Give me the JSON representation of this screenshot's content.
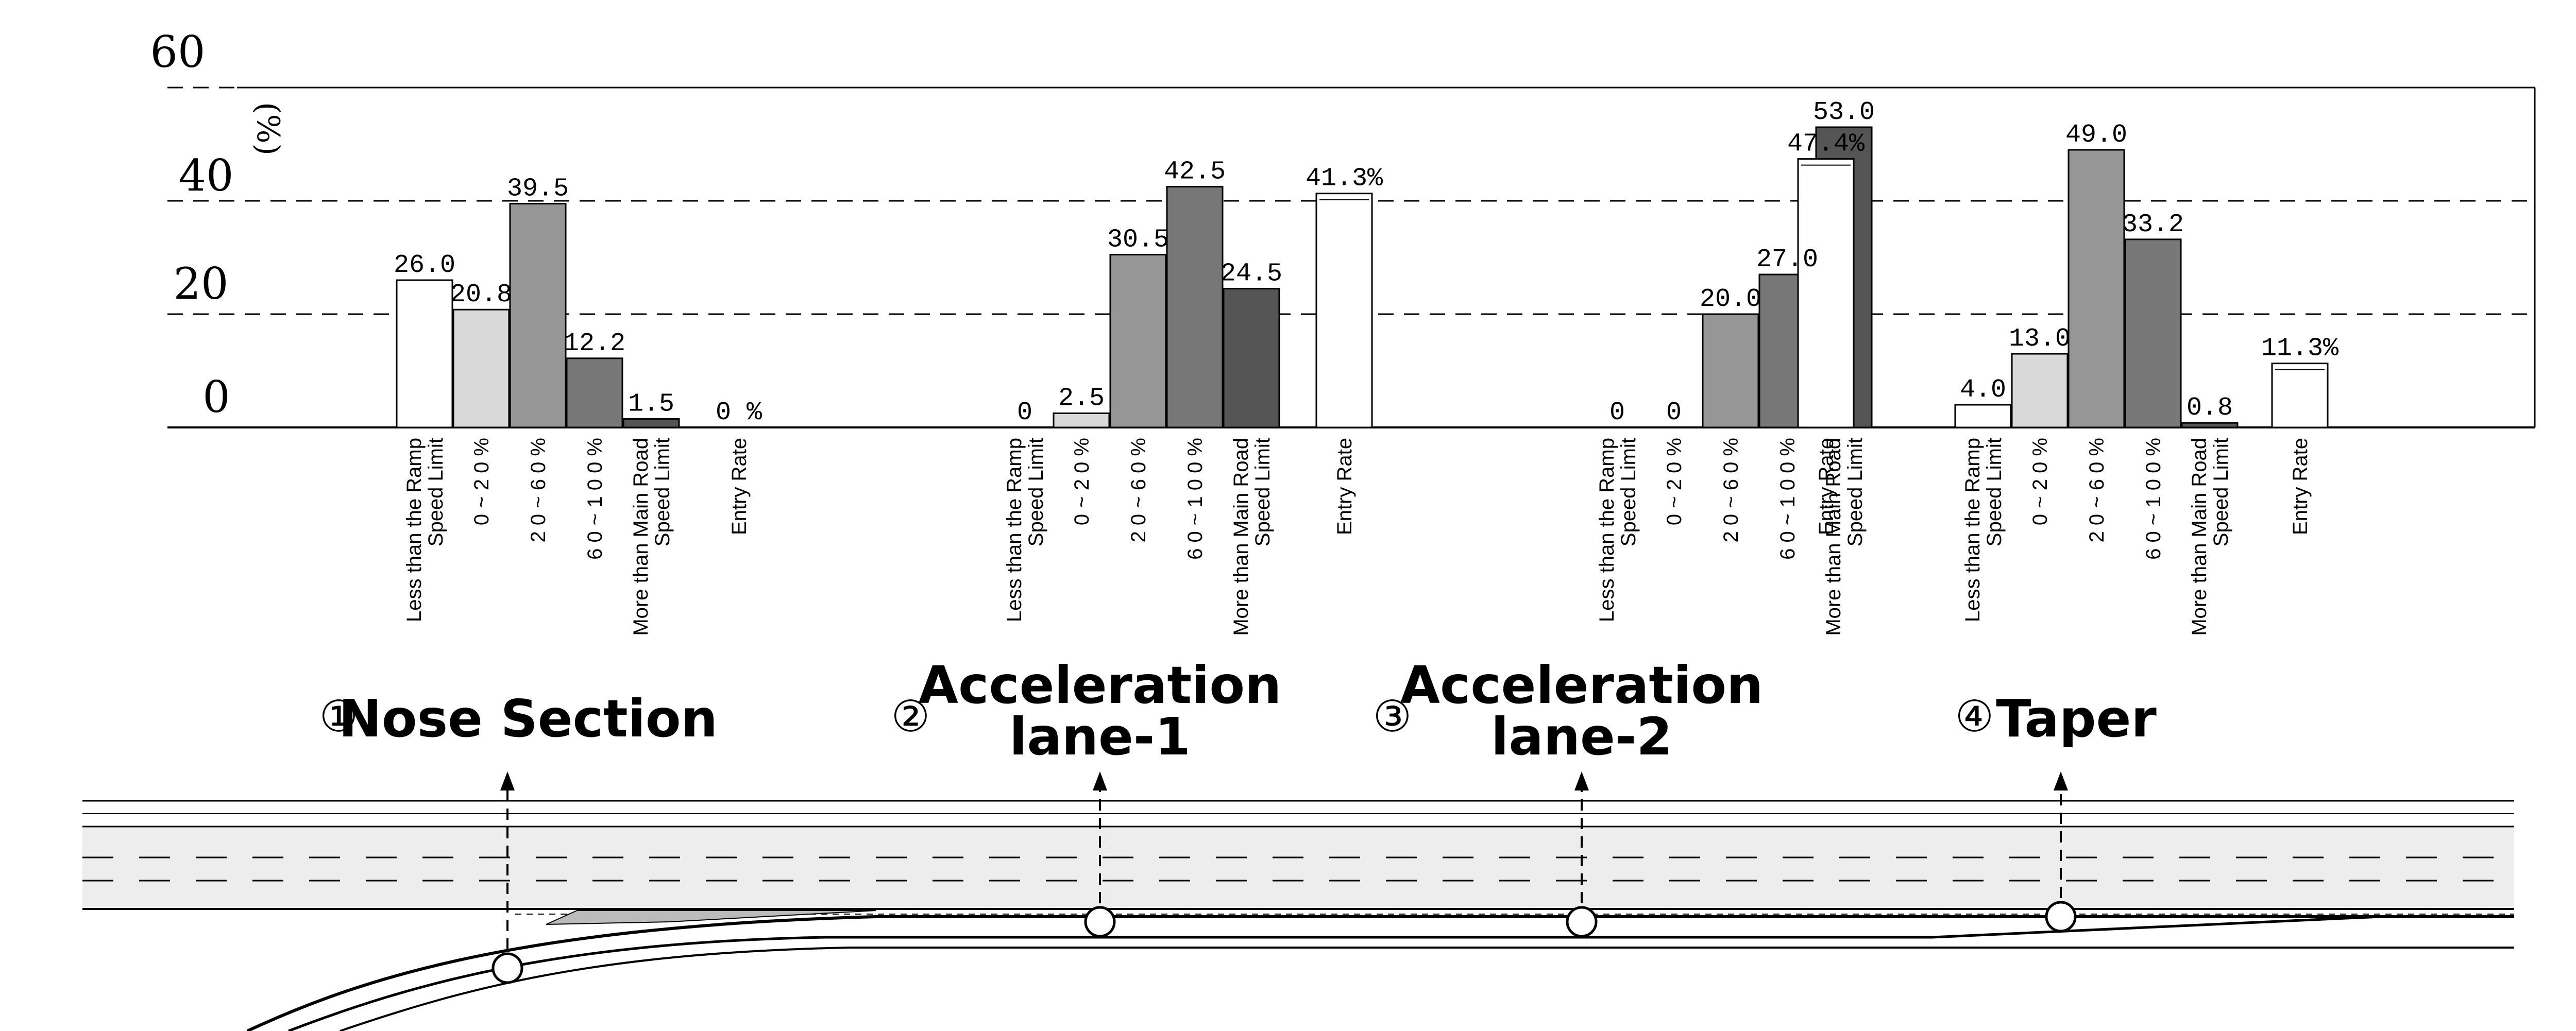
{
  "chart_data": {
    "type": "bar",
    "ylabel": "(%)",
    "ylim": [
      0,
      60
    ],
    "yticks": [
      "60",
      "40",
      "20",
      "0"
    ],
    "grid": true,
    "categories": [
      "Less than the Ramp Speed Limit",
      "0 ~ 2 0 %",
      "2 0 ~ 6 0 %",
      "6 0 ~ 1 0 0 %",
      "More than Main Road Speed Limit",
      "Entry Rate"
    ],
    "category_lines": [
      [
        "Less than the Ramp",
        "Speed Limit"
      ],
      [
        "0 ~ 2 0 %"
      ],
      [
        "2 0 ~ 6 0 %"
      ],
      [
        "6 0 ~ 1 0 0 %"
      ],
      [
        "More than Main Road",
        "Speed Limit"
      ],
      [
        "Entry Rate"
      ]
    ],
    "category_colors": [
      "#ffffff",
      "#d9d9d9",
      "#969696",
      "#777777",
      "#555555",
      "#ffffff"
    ],
    "groups": [
      {
        "number": "①",
        "name_lines": [
          "Nose Section"
        ],
        "values": [
          26.0,
          20.8,
          39.5,
          12.2,
          1.5,
          0
        ],
        "labels": [
          "26.0",
          "20.8",
          "39.5",
          "12.2",
          "1.5",
          "0 %"
        ]
      },
      {
        "number": "②",
        "name_lines": [
          "Acceleration",
          "lane-1"
        ],
        "values": [
          0,
          2.5,
          30.5,
          42.5,
          24.5,
          41.3
        ],
        "labels": [
          "0",
          "2.5",
          "30.5",
          "42.5",
          "24.5",
          "41.3%"
        ]
      },
      {
        "number": "③",
        "name_lines": [
          "Acceleration",
          "lane-2"
        ],
        "values": [
          0,
          0,
          20.0,
          27.0,
          53.0,
          47.4
        ],
        "labels": [
          "0",
          "0",
          "20.0",
          "27.0",
          "53.0",
          "47.4%"
        ]
      },
      {
        "number": "④",
        "name_lines": [
          "Taper"
        ],
        "values": [
          4.0,
          13.0,
          49.0,
          33.2,
          0.8,
          11.3
        ],
        "labels": [
          "4.0",
          "13.0",
          "49.0",
          "33.2",
          "0.8",
          "11.3%"
        ]
      }
    ]
  }
}
